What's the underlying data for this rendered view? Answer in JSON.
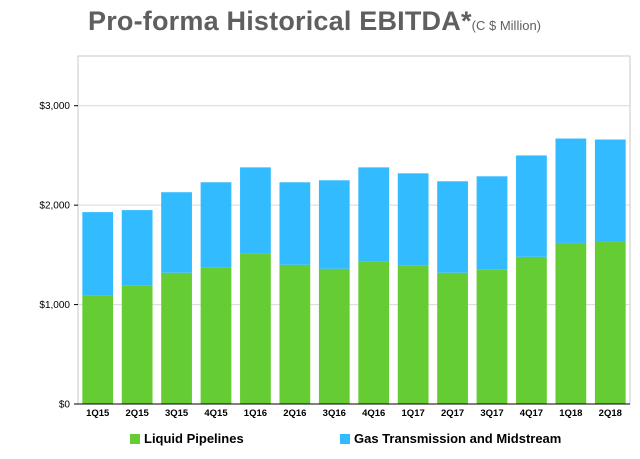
{
  "title": {
    "main": "Pro-forma Historical EBITDA*",
    "unit": "(C $ Million)"
  },
  "colors": {
    "liquid": "#66cc33",
    "gas": "#33bbff",
    "plot_border": "#c8c8c8",
    "grid": "#d9d9d9"
  },
  "chart_data": {
    "type": "bar",
    "stacked": true,
    "categories": [
      "1Q15",
      "2Q15",
      "3Q15",
      "4Q15",
      "1Q16",
      "2Q16",
      "3Q16",
      "4Q16",
      "1Q17",
      "2Q17",
      "3Q17",
      "4Q17",
      "1Q18",
      "2Q18"
    ],
    "series": [
      {
        "name": "Liquid Pipelines",
        "values": [
          1090,
          1190,
          1320,
          1370,
          1510,
          1400,
          1360,
          1430,
          1390,
          1320,
          1350,
          1480,
          1620,
          1630
        ]
      },
      {
        "name": "Gas Transmission and Midstream",
        "values": [
          840,
          760,
          810,
          860,
          870,
          830,
          890,
          950,
          930,
          920,
          940,
          1020,
          1050,
          1030
        ]
      }
    ],
    "ylim": [
      0,
      3500
    ],
    "yticks": [
      0,
      1000,
      2000,
      3000
    ],
    "ytick_labels": [
      "$0",
      "$1,000",
      "$2,000",
      "$3,000"
    ],
    "grid": true,
    "legend_position": "bottom"
  }
}
